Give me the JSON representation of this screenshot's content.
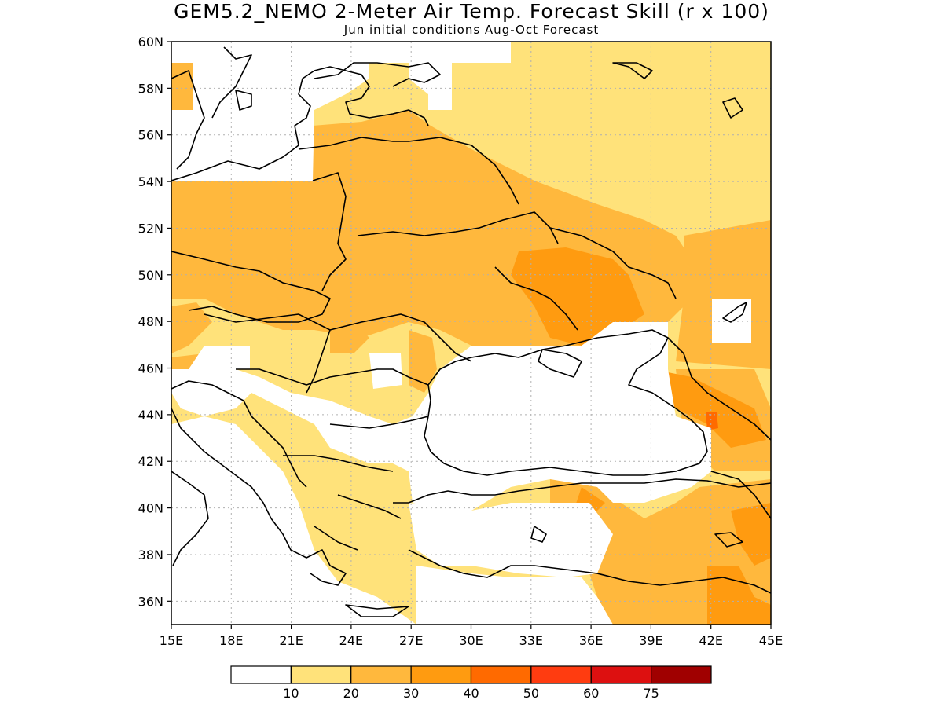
{
  "title": "GEM5.2_NEMO 2-Meter Air Temp. Forecast Skill (r x 100)",
  "subtitle": "Jun initial conditions  Aug-Oct Forecast",
  "map": {
    "lon_range": [
      15,
      45
    ],
    "lat_range": [
      35,
      60
    ],
    "lon_ticks": [
      "15E",
      "18E",
      "21E",
      "24E",
      "27E",
      "30E",
      "33E",
      "36E",
      "39E",
      "42E",
      "45E"
    ],
    "lat_ticks": [
      "36N",
      "38N",
      "40N",
      "42N",
      "44N",
      "46N",
      "48N",
      "50N",
      "52N",
      "54N",
      "56N",
      "58N",
      "60N"
    ],
    "grid": "dotted"
  },
  "colorbar": {
    "labels": [
      "10",
      "20",
      "30",
      "40",
      "50",
      "60",
      "75"
    ],
    "colors": [
      "#ffffff",
      "#ffe27a",
      "#ffb83d",
      "#ff9b10",
      "#ff6a00",
      "#ff3c10",
      "#dd1010",
      "#a00000"
    ]
  }
}
